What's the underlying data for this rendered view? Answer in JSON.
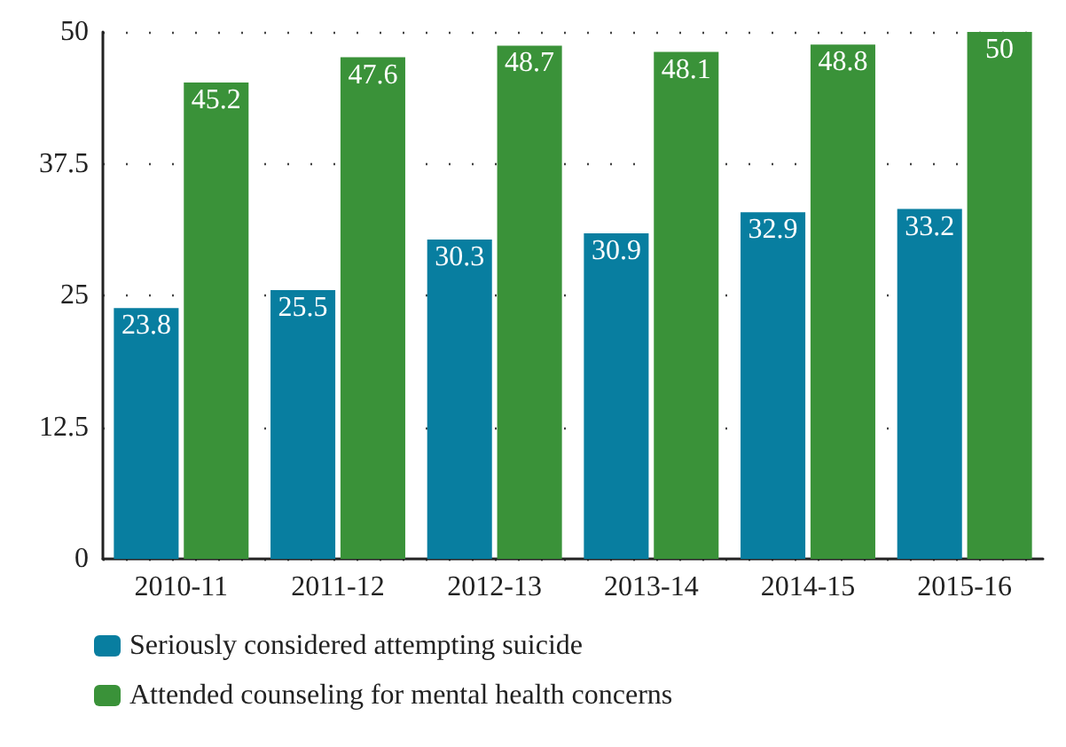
{
  "chart_data": {
    "type": "bar",
    "categories": [
      "2010-11",
      "2011-12",
      "2012-13",
      "2013-14",
      "2014-15",
      "2015-16"
    ],
    "series": [
      {
        "name": "Seriously considered attempting suicide",
        "color": "#087ea0",
        "values": [
          23.8,
          25.5,
          30.3,
          30.9,
          32.9,
          33.2
        ]
      },
      {
        "name": "Attended counseling for mental health concerns",
        "color": "#3a9239",
        "values": [
          45.2,
          47.6,
          48.7,
          48.1,
          48.8,
          50
        ]
      }
    ],
    "ylim": [
      0,
      50
    ],
    "yticks": [
      0,
      12.5,
      25,
      37.5,
      50
    ],
    "grid": "y",
    "legend": "bottom left",
    "data_labels": true
  }
}
